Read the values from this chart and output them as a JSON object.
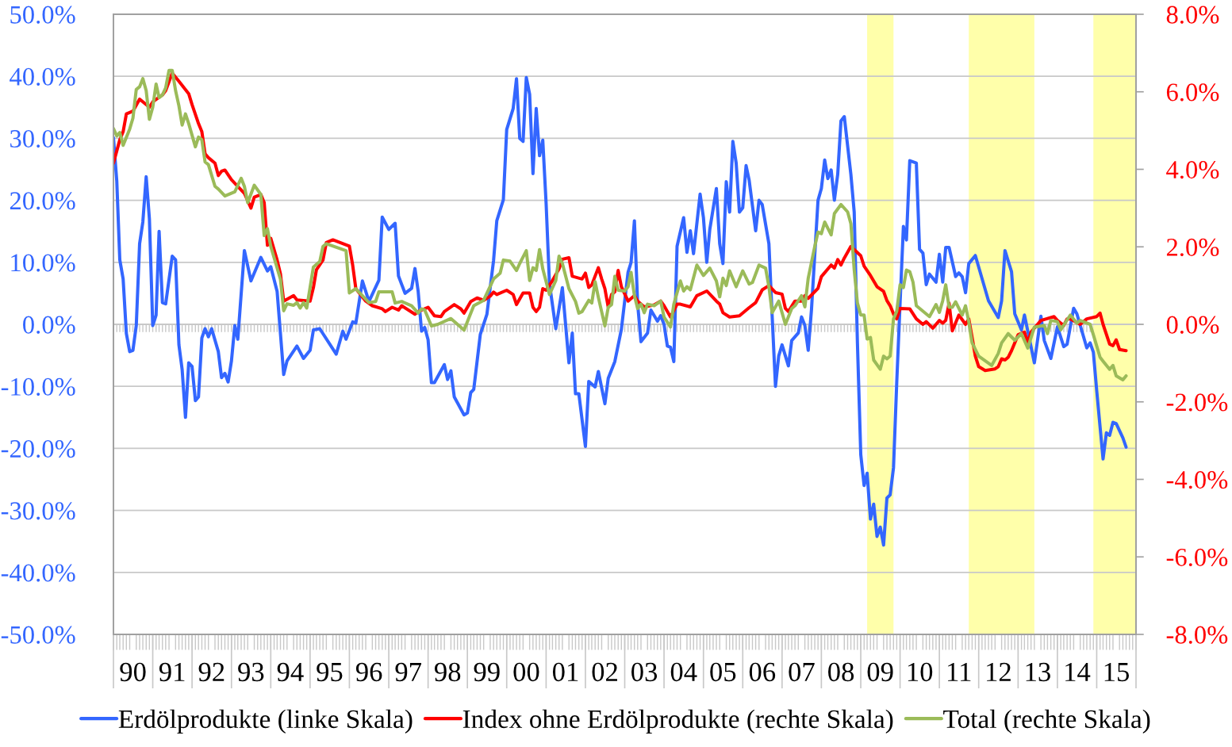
{
  "chart_data": {
    "type": "line",
    "xlim": [
      "1990-01",
      "2016-01"
    ],
    "xticks": [
      {
        "value": "1990-07",
        "label": "90"
      },
      {
        "value": "1991-07",
        "label": "91"
      },
      {
        "value": "1992-07",
        "label": "92"
      },
      {
        "value": "1993-07",
        "label": "93"
      },
      {
        "value": "1994-07",
        "label": "94"
      },
      {
        "value": "1995-07",
        "label": "95"
      },
      {
        "value": "1996-07",
        "label": "96"
      },
      {
        "value": "1997-07",
        "label": "97"
      },
      {
        "value": "1998-07",
        "label": "98"
      },
      {
        "value": "1999-07",
        "label": "99"
      },
      {
        "value": "2000-07",
        "label": "00"
      },
      {
        "value": "2001-07",
        "label": "01"
      },
      {
        "value": "2002-07",
        "label": "02"
      },
      {
        "value": "2003-07",
        "label": "03"
      },
      {
        "value": "2004-07",
        "label": "04"
      },
      {
        "value": "2005-07",
        "label": "05"
      },
      {
        "value": "2006-07",
        "label": "06"
      },
      {
        "value": "2007-07",
        "label": "07"
      },
      {
        "value": "2008-07",
        "label": "08"
      },
      {
        "value": "2009-07",
        "label": "09"
      },
      {
        "value": "2010-07",
        "label": "10"
      },
      {
        "value": "2011-07",
        "label": "11"
      },
      {
        "value": "2012-07",
        "label": "12"
      },
      {
        "value": "2013-07",
        "label": "13"
      },
      {
        "value": "2014-07",
        "label": "14"
      },
      {
        "value": "2015-07",
        "label": "15"
      }
    ],
    "ylim": [
      -50,
      50
    ],
    "yticks": [
      {
        "value": -50,
        "label": "-50.0%"
      },
      {
        "value": -40,
        "label": "-40.0%"
      },
      {
        "value": -30,
        "label": "-30.0%"
      },
      {
        "value": -20,
        "label": "-20.0%"
      },
      {
        "value": -10,
        "label": "-10.0%"
      },
      {
        "value": 0,
        "label": "0.0%"
      },
      {
        "value": 10,
        "label": "10.0%"
      },
      {
        "value": 20,
        "label": "20.0%"
      },
      {
        "value": 30,
        "label": "30.0%"
      },
      {
        "value": 40,
        "label": "40.0%"
      },
      {
        "value": 50,
        "label": "50.0%"
      }
    ],
    "y2lim": [
      -8,
      8
    ],
    "y2ticks": [
      {
        "value": -8,
        "label": "-8.0%"
      },
      {
        "value": -6,
        "label": "-6.0%"
      },
      {
        "value": -4,
        "label": "-4.0%"
      },
      {
        "value": -2,
        "label": "-2.0%"
      },
      {
        "value": 0,
        "label": "0.0%"
      },
      {
        "value": 2,
        "label": "2.0%"
      },
      {
        "value": 4,
        "label": "4.0%"
      },
      {
        "value": 6,
        "label": "6.0%"
      },
      {
        "value": 8,
        "label": "8.0%"
      }
    ],
    "grid": "y",
    "legend": "bottom",
    "bands": [
      {
        "axis": "x",
        "from": "2009-03",
        "to": "2009-11",
        "color": "#ffffaa"
      },
      {
        "axis": "x",
        "from": "2011-10",
        "to": "2013-06",
        "color": "#ffffaa"
      },
      {
        "axis": "x",
        "from": "2014-12",
        "to": "2016-01",
        "color": "#ffffaa"
      }
    ],
    "series": [
      {
        "name": "Erdölprodukte (linke Skala)",
        "color": "#3366ff",
        "axis": "y",
        "x": [
          "1990-01",
          "1990-02",
          "1990-03",
          "1990-04",
          "1990-05",
          "1990-06",
          "1990-07",
          "1990-08",
          "1990-09",
          "1990-10",
          "1990-11",
          "1990-12",
          "1991-01",
          "1991-02",
          "1991-03",
          "1991-04",
          "1991-05",
          "1991-07",
          "1991-08",
          "1991-09",
          "1991-10",
          "1991-11",
          "1991-12",
          "1992-01",
          "1992-02",
          "1992-03",
          "1992-04",
          "1992-05",
          "1992-06",
          "1992-07",
          "1992-09",
          "1992-10",
          "1992-11",
          "1992-12",
          "1993-01",
          "1993-02",
          "1993-03",
          "1993-05",
          "1993-07",
          "1993-10",
          "1993-12",
          "1994-01",
          "1994-03",
          "1994-05",
          "1994-06",
          "1994-09",
          "1994-11",
          "1995-01",
          "1995-02",
          "1995-04",
          "1995-09",
          "1995-11",
          "1995-12",
          "1996-02",
          "1996-03",
          "1996-05",
          "1996-07",
          "1996-10",
          "1996-11",
          "1997-01",
          "1997-03",
          "1997-04",
          "1997-06",
          "1997-08",
          "1997-09",
          "1997-10",
          "1997-11",
          "1997-12",
          "1998-01",
          "1998-02",
          "1998-03",
          "1998-06",
          "1998-07",
          "1998-08",
          "1998-09",
          "1998-12",
          "1999-01",
          "1999-02",
          "1999-03",
          "1999-05",
          "1999-07",
          "1999-09",
          "1999-10",
          "1999-12",
          "2000-01",
          "2000-03",
          "2000-04",
          "2000-05",
          "2000-06",
          "2000-07",
          "2000-08",
          "2000-09",
          "2000-10",
          "2000-11",
          "2000-12",
          "2001-01",
          "2001-02",
          "2001-04",
          "2001-06",
          "2001-08",
          "2001-09",
          "2001-10",
          "2001-11",
          "2002-01",
          "2002-02",
          "2002-04",
          "2002-05",
          "2002-07",
          "2002-08",
          "2002-10",
          "2002-12",
          "2003-02",
          "2003-03",
          "2003-04",
          "2003-05",
          "2003-06",
          "2003-08",
          "2003-09",
          "2003-11",
          "2003-12",
          "2004-01",
          "2004-02",
          "2004-03",
          "2004-04",
          "2004-05",
          "2004-07",
          "2004-08",
          "2004-09",
          "2004-10",
          "2004-12",
          "2005-01",
          "2005-02",
          "2005-03",
          "2005-05",
          "2005-06",
          "2005-07",
          "2005-08",
          "2005-09",
          "2005-10",
          "2005-11",
          "2005-12",
          "2006-01",
          "2006-02",
          "2006-03",
          "2006-05",
          "2006-06",
          "2006-07",
          "2006-09",
          "2006-10",
          "2006-11",
          "2006-12",
          "2007-01",
          "2007-03",
          "2007-04",
          "2007-06",
          "2007-07",
          "2007-08",
          "2007-09",
          "2007-10",
          "2007-12",
          "2008-01",
          "2008-02",
          "2008-03",
          "2008-04",
          "2008-05",
          "2008-06",
          "2008-07",
          "2008-08",
          "2008-10",
          "2008-11",
          "2008-12",
          "2009-01",
          "2009-02",
          "2009-03",
          "2009-04",
          "2009-05",
          "2009-06",
          "2009-07",
          "2009-08",
          "2009-09",
          "2009-10",
          "2009-11",
          "2009-12",
          "2010-01",
          "2010-02",
          "2010-03",
          "2010-04",
          "2010-06",
          "2010-07",
          "2010-08",
          "2010-09",
          "2010-10",
          "2010-12",
          "2011-01",
          "2011-02",
          "2011-03",
          "2011-04",
          "2011-06",
          "2011-07",
          "2011-08",
          "2011-09",
          "2011-10",
          "2011-12",
          "2012-04",
          "2012-07",
          "2012-08",
          "2012-09",
          "2012-11",
          "2012-12",
          "2013-02",
          "2013-03",
          "2013-06",
          "2013-08",
          "2013-09",
          "2013-11",
          "2014-01",
          "2014-03",
          "2014-04",
          "2014-06",
          "2014-07",
          "2014-10",
          "2014-11",
          "2014-12",
          "2015-01",
          "2015-03",
          "2015-04",
          "2015-05",
          "2015-06",
          "2015-07",
          "2015-09",
          "2015-10"
        ],
        "values": [
          30.1,
          23.1,
          10.4,
          7.3,
          -1.5,
          -4.4,
          -4.2,
          -0.2,
          13,
          16.5,
          23.8,
          17,
          -0.2,
          1.5,
          15,
          3.5,
          3.3,
          11,
          10.4,
          -3.3,
          -7.3,
          -15,
          -6.2,
          -6.8,
          -12.3,
          -11.7,
          -2.2,
          -0.7,
          -2,
          -0.7,
          -4.4,
          -8.6,
          -7.9,
          -9.3,
          -5.9,
          -0.2,
          -2.4,
          11.9,
          7,
          10.8,
          8.6,
          9.3,
          5.3,
          -8.1,
          -5.9,
          -3.5,
          -5.5,
          -4.2,
          -0.9,
          -0.7,
          -4.8,
          -1.1,
          -2.4,
          0.4,
          0.2,
          7,
          3.7,
          7.1,
          17.3,
          15.3,
          16.3,
          7.8,
          5,
          5.8,
          9,
          5.3,
          -1.1,
          -0.5,
          -2.5,
          -9.4,
          -9.4,
          -6.5,
          -8.9,
          -7.5,
          -11.7,
          -14.6,
          -14.3,
          -11,
          -10.5,
          -1.6,
          1.6,
          10.3,
          16.7,
          20.1,
          31.4,
          34.8,
          39.6,
          30,
          29.5,
          39.8,
          37.1,
          24.3,
          34.8,
          27.2,
          29.7,
          19.5,
          6.6,
          -0.7,
          5.9,
          -6.2,
          -1.4,
          -11.2,
          -11.2,
          -19.7,
          -9.2,
          -10.1,
          -7.6,
          -12.8,
          -8.7,
          -6,
          -0.8,
          8.4,
          10,
          16.7,
          3.3,
          -2.8,
          -1.4,
          2.3,
          0.5,
          1.4,
          0,
          -3.5,
          -3.7,
          -6,
          12.6,
          17.2,
          11.6,
          15.1,
          11.4,
          21,
          17.2,
          10,
          15.3,
          21.9,
          13,
          9.8,
          23,
          18.1,
          29.5,
          26,
          18.1,
          18.8,
          25.6,
          23.3,
          15.1,
          20,
          19.3,
          13,
          1.4,
          -10,
          -5.1,
          -3.3,
          -6.7,
          -2.6,
          -1.4,
          1.2,
          -0.2,
          -4.2,
          2.3,
          20,
          21.9,
          26.5,
          23.5,
          24.9,
          20,
          24.2,
          32.8,
          33.5,
          24.2,
          18.1,
          -3,
          -21,
          -26,
          -24,
          -31.4,
          -29,
          -34.2,
          -32.7,
          -35.6,
          -28,
          -27.5,
          -23.1,
          -9.4,
          3.4,
          15.8,
          13.6,
          26.4,
          26,
          12.1,
          11.5,
          6.4,
          8.1,
          6.8,
          11.3,
          6.8,
          12.4,
          12.4,
          7.7,
          8.3,
          7.7,
          5.1,
          9.8,
          11.1,
          3.8,
          1.1,
          3.8,
          11.9,
          8.5,
          1.7,
          -0.9,
          1.5,
          -6.2,
          1.3,
          -2.6,
          -5.5,
          -0.4,
          -3.6,
          -3.2,
          2.6,
          1.7,
          -3.8,
          -3,
          -4.5,
          -10.7,
          -21.7,
          -17.5,
          -17.9,
          -15.8,
          -16,
          -18.3,
          -19.8
        ]
      },
      {
        "name": "Index ohne Erdölprodukte (rechte Skala)",
        "color": "#ff0000",
        "axis": "y2",
        "x": [
          "1990-01",
          "1990-03",
          "1990-04",
          "1990-05",
          "1990-07",
          "1990-09",
          "1990-12",
          "1991-01",
          "1991-04",
          "1991-05",
          "1991-07",
          "1991-09",
          "1991-12",
          "1992-01",
          "1992-03",
          "1992-04",
          "1992-05",
          "1992-06",
          "1992-08",
          "1992-09",
          "1992-10",
          "1992-11",
          "1993-01",
          "1993-05",
          "1993-07",
          "1993-08",
          "1993-10",
          "1993-11",
          "1993-12",
          "1994-01",
          "1994-03",
          "1994-04",
          "1994-05",
          "1994-08",
          "1994-09",
          "1995-01",
          "1995-02",
          "1995-03",
          "1995-05",
          "1995-06",
          "1995-08",
          "1996-01",
          "1996-02",
          "1996-03",
          "1996-06",
          "1996-08",
          "1996-11",
          "1996-12",
          "1997-02",
          "1997-04",
          "1997-05",
          "1997-09",
          "1997-10",
          "1998-01",
          "1998-03",
          "1998-05",
          "1998-06",
          "1998-09",
          "1998-11",
          "1998-12",
          "1999-02",
          "1999-04",
          "1999-06",
          "1999-08",
          "1999-09",
          "1999-10",
          "2000-01",
          "2000-03",
          "2000-04",
          "2000-06",
          "2000-08",
          "2000-09",
          "2000-10",
          "2000-11",
          "2000-12",
          "2001-01",
          "2001-03",
          "2001-05",
          "2001-06",
          "2001-08",
          "2001-09",
          "2001-12",
          "2002-01",
          "2002-02",
          "2002-03",
          "2002-05",
          "2002-06",
          "2002-07",
          "2002-08",
          "2002-09",
          "2002-10",
          "2002-11",
          "2002-12",
          "2003-02",
          "2003-04",
          "2003-05",
          "2003-07",
          "2003-10",
          "2003-12",
          "2004-01",
          "2004-03",
          "2004-05",
          "2004-06",
          "2004-09",
          "2004-11",
          "2005-02",
          "2005-03",
          "2005-05",
          "2005-06",
          "2005-07",
          "2005-09",
          "2005-12",
          "2006-03",
          "2006-05",
          "2006-07",
          "2006-09",
          "2006-11",
          "2007-01",
          "2007-02",
          "2007-03",
          "2007-05",
          "2007-07",
          "2007-08",
          "2007-09",
          "2007-12",
          "2008-01",
          "2008-04",
          "2008-05",
          "2008-06",
          "2008-07",
          "2008-08",
          "2008-10",
          "2008-11",
          "2009-01",
          "2009-02",
          "2009-04",
          "2009-06",
          "2009-08",
          "2009-09",
          "2009-10",
          "2009-11",
          "2009-12",
          "2010-01",
          "2010-04",
          "2010-06",
          "2010-08",
          "2010-09",
          "2010-11",
          "2010-12",
          "2011-01",
          "2011-02",
          "2011-03",
          "2011-04",
          "2011-05",
          "2011-07",
          "2011-09",
          "2011-10",
          "2011-11",
          "2011-12",
          "2012-01",
          "2012-03",
          "2012-06",
          "2012-07",
          "2012-08",
          "2012-09",
          "2012-10",
          "2012-11",
          "2013-01",
          "2013-03",
          "2013-04",
          "2013-05",
          "2013-08",
          "2013-12",
          "2014-01",
          "2014-03",
          "2014-04",
          "2014-05",
          "2014-08",
          "2014-10",
          "2015-01",
          "2015-02",
          "2015-03",
          "2015-05",
          "2015-06",
          "2015-07",
          "2015-08",
          "2015-10"
        ],
        "values": [
          4.16,
          4.76,
          4.97,
          5.43,
          5.5,
          5.81,
          5.6,
          5.74,
          5.92,
          6.03,
          6.48,
          6.27,
          5.95,
          5.67,
          5.18,
          4.97,
          4.4,
          4.3,
          4.16,
          3.84,
          3.95,
          3.98,
          3.73,
          3.38,
          3,
          3.28,
          3.35,
          3.14,
          2.04,
          2.22,
          1.66,
          1.3,
          0.6,
          0.74,
          0.63,
          0.6,
          0.95,
          1.41,
          1.66,
          2.11,
          2.18,
          2.02,
          1.52,
          0.92,
          0.6,
          0.48,
          0.4,
          0.33,
          0.44,
          0.37,
          0.48,
          0.26,
          0.33,
          0.44,
          0.22,
          0.2,
          0.33,
          0.51,
          0.4,
          0.29,
          0.59,
          0.68,
          0.62,
          0.73,
          0.83,
          0.77,
          0.88,
          0.77,
          0.51,
          0.81,
          0.81,
          0.44,
          0.33,
          0.44,
          0.92,
          0.88,
          1.13,
          1.43,
          1.68,
          1.72,
          1.24,
          1.17,
          1.32,
          0.95,
          1.02,
          1.46,
          1.17,
          0.92,
          0.44,
          0.77,
          0.84,
          1.39,
          0.97,
          0.6,
          0.74,
          0.6,
          0.45,
          0.5,
          0.6,
          0.48,
          0.19,
          0.52,
          0.52,
          0.45,
          0.74,
          0.86,
          0.78,
          0.6,
          0.52,
          0.3,
          0.19,
          0.22,
          0.43,
          0.56,
          0.89,
          1,
          0.82,
          0.78,
          0.41,
          0.33,
          0.6,
          0.6,
          0.74,
          0.67,
          0.93,
          1.23,
          1.53,
          1.45,
          1.67,
          1.53,
          1.71,
          2.01,
          1.93,
          1.77,
          1.5,
          1.26,
          0.97,
          0.85,
          0.61,
          0.48,
          0.27,
          0.14,
          0.41,
          0.4,
          0.14,
          0,
          0.07,
          -0.1,
          0,
          0.1,
          0.03,
          0.1,
          0.55,
          -0.17,
          0.24,
          0,
          0.14,
          -0.34,
          -0.82,
          -1.09,
          -1.19,
          -1.15,
          -1.09,
          -0.89,
          -0.92,
          -0.85,
          -0.68,
          -0.27,
          -0.2,
          -0.48,
          -0.2,
          0.1,
          0.2,
          0.1,
          -0.03,
          0.14,
          0.14,
          0,
          0.14,
          0.2,
          0.29,
          0,
          -0.51,
          -0.55,
          -0.4,
          -0.65,
          -0.68
        ]
      },
      {
        "name": "Total (rechte Skala)",
        "color": "#9bbb59",
        "axis": "y2",
        "x": [
          "1990-01",
          "1990-02",
          "1990-03",
          "1990-04",
          "1990-06",
          "1990-07",
          "1990-08",
          "1990-09",
          "1990-10",
          "1990-11",
          "1990-12",
          "1991-01",
          "1991-02",
          "1991-03",
          "1991-04",
          "1991-05",
          "1991-06",
          "1991-07",
          "1991-08",
          "1991-09",
          "1991-10",
          "1991-11",
          "1991-12",
          "1992-02",
          "1992-03",
          "1992-04",
          "1992-05",
          "1992-06",
          "1992-08",
          "1992-09",
          "1992-11",
          "1993-02",
          "1993-04",
          "1993-05",
          "1993-06",
          "1993-08",
          "1993-10",
          "1993-11",
          "1993-12",
          "1994-01",
          "1994-04",
          "1994-05",
          "1994-06",
          "1994-08",
          "1994-09",
          "1994-10",
          "1994-11",
          "1994-12",
          "1995-01",
          "1995-02",
          "1995-04",
          "1995-05",
          "1995-06",
          "1995-12",
          "1996-01",
          "1996-03",
          "1996-07",
          "1996-09",
          "1996-10",
          "1997-02",
          "1997-03",
          "1997-05",
          "1997-08",
          "1997-10",
          "1997-11",
          "1997-12",
          "1998-02",
          "1998-04",
          "1998-08",
          "1998-10",
          "1998-12",
          "1999-03",
          "1999-06",
          "1999-09",
          "1999-11",
          "1999-12",
          "2000-02",
          "2000-04",
          "2000-05",
          "2000-07",
          "2000-08",
          "2000-09",
          "2000-10",
          "2000-11",
          "2000-12",
          "2001-02",
          "2001-04",
          "2001-05",
          "2001-06",
          "2001-08",
          "2001-10",
          "2001-11",
          "2001-12",
          "2002-02",
          "2002-03",
          "2002-04",
          "2002-05",
          "2002-07",
          "2002-08",
          "2002-09",
          "2002-10",
          "2002-11",
          "2003-01",
          "2003-02",
          "2003-03",
          "2003-04",
          "2003-05",
          "2003-06",
          "2003-07",
          "2003-08",
          "2003-10",
          "2003-12",
          "2004-01",
          "2004-03",
          "2004-04",
          "2004-06",
          "2004-07",
          "2004-08",
          "2004-09",
          "2004-11",
          "2005-01",
          "2005-03",
          "2005-05",
          "2005-06",
          "2005-07",
          "2005-08",
          "2005-09",
          "2005-11",
          "2006-01",
          "2006-03",
          "2006-04",
          "2006-06",
          "2006-08",
          "2006-09",
          "2006-10",
          "2006-12",
          "2007-02",
          "2007-04",
          "2007-05",
          "2007-07",
          "2007-08",
          "2007-09",
          "2007-11",
          "2007-12",
          "2008-01",
          "2008-02",
          "2008-04",
          "2008-05",
          "2008-07",
          "2008-09",
          "2008-10",
          "2008-11",
          "2008-12",
          "2009-01",
          "2009-02",
          "2009-03",
          "2009-04",
          "2009-05",
          "2009-07",
          "2009-08",
          "2009-09",
          "2009-10",
          "2009-11",
          "2009-12",
          "2010-01",
          "2010-02",
          "2010-03",
          "2010-04",
          "2010-05",
          "2010-06",
          "2010-10",
          "2010-12",
          "2011-01",
          "2011-02",
          "2011-03",
          "2011-04",
          "2011-05",
          "2011-06",
          "2011-08",
          "2011-09",
          "2011-10",
          "2011-11",
          "2012-01",
          "2012-05",
          "2012-07",
          "2012-08",
          "2012-10",
          "2012-12",
          "2013-02",
          "2013-04",
          "2013-06",
          "2013-09",
          "2013-10",
          "2013-11",
          "2014-01",
          "2014-02",
          "2014-05",
          "2014-07",
          "2014-08",
          "2014-11",
          "2014-12",
          "2015-02",
          "2015-03",
          "2015-05",
          "2015-06",
          "2015-07",
          "2015-09",
          "2015-10"
        ],
        "values": [
          5.05,
          4.86,
          4.95,
          4.62,
          5.04,
          5.32,
          6.06,
          6.13,
          6.34,
          6.03,
          5.29,
          5.6,
          6.2,
          5.85,
          5.92,
          6.1,
          6.55,
          6.55,
          6.03,
          5.64,
          5.14,
          5.43,
          5.18,
          4.58,
          4.83,
          4.76,
          4.19,
          4.12,
          3.56,
          3.49,
          3.31,
          3.42,
          3.77,
          3.56,
          3.14,
          3.59,
          3.35,
          2.29,
          2.47,
          2.01,
          1.16,
          0.35,
          0.53,
          0.49,
          0.56,
          0.42,
          0.56,
          0.42,
          0.95,
          1.48,
          1.62,
          2.01,
          2.08,
          1.9,
          0.81,
          0.92,
          0.56,
          0.59,
          0.84,
          0.84,
          0.55,
          0.59,
          0.48,
          0.29,
          0.4,
          0.37,
          -0.04,
          0,
          0.15,
          0,
          -0.15,
          0.48,
          0.62,
          1.17,
          1.32,
          1.66,
          1.63,
          1.39,
          1.57,
          1.9,
          1.13,
          1.46,
          1.39,
          1.93,
          1.43,
          0.77,
          1.13,
          1.76,
          1.57,
          0.92,
          0.59,
          0.29,
          0.33,
          0.62,
          0.55,
          1.1,
          0.7,
          -0.04,
          0.44,
          0.51,
          1.24,
          0.88,
          0.86,
          0.97,
          1.34,
          0.74,
          0.41,
          0.52,
          0.3,
          0.52,
          0.48,
          0.6,
          0.19,
          -0.07,
          0.52,
          1.12,
          0.86,
          0.97,
          0.89,
          1.53,
          1.26,
          1.45,
          1.12,
          0.71,
          1.19,
          1,
          1.38,
          0.97,
          1.38,
          1.04,
          1.08,
          1.53,
          1.45,
          0.97,
          0.3,
          0.6,
          0,
          0.41,
          0.48,
          0.74,
          0.45,
          1.19,
          2.01,
          2.38,
          2.34,
          2.64,
          2.31,
          2.86,
          3.09,
          2.9,
          2.6,
          1.41,
          0.55,
          0.24,
          0.24,
          -0.38,
          -0.34,
          -0.92,
          -1.16,
          -0.82,
          -0.89,
          -0.82,
          0.14,
          0.34,
          1.02,
          0.95,
          1.4,
          1.36,
          1.09,
          0.48,
          0.2,
          0.51,
          0.31,
          0.61,
          1.02,
          0.44,
          0.44,
          0.58,
          0.24,
          0.48,
          0.07,
          -0.48,
          -0.82,
          -1.06,
          -0.75,
          -0.48,
          -0.24,
          -0.41,
          -0.24,
          -0.61,
          -0.07,
          -0.03,
          -0.24,
          0.1,
          0.07,
          -0.14,
          0.24,
          0.03,
          0.1,
          0,
          -0.27,
          -0.85,
          -0.95,
          -1.16,
          -1.06,
          -1.33,
          -1.43,
          -1.33
        ]
      }
    ]
  }
}
